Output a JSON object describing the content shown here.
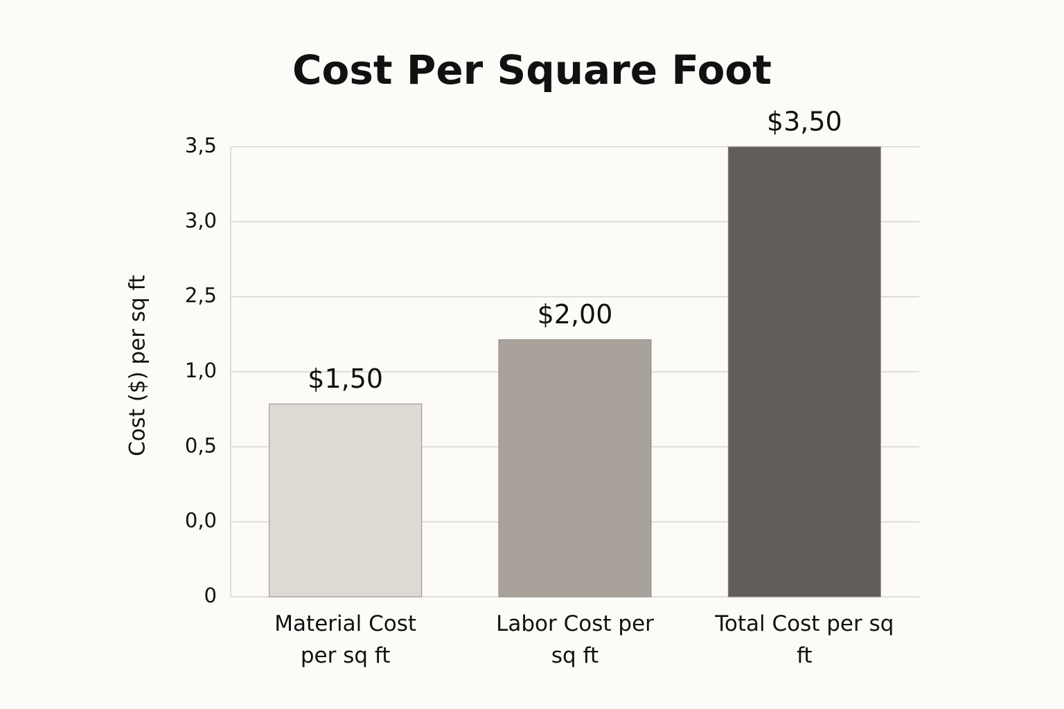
{
  "chart_data": {
    "type": "bar",
    "title": "Cost Per Square Foot",
    "y_label": "Cost ($) per sq ft",
    "categories": [
      "Material Cost per sq ft",
      "Labor Cost per sq ft",
      "Total Cost per sq ft"
    ],
    "values": [
      1.5,
      2,
      3.5
    ],
    "value_labels": [
      "$1,50",
      "$2,00",
      "$3,50"
    ],
    "colors": [
      "#e0dad5",
      "#a8a29b",
      "#625d58"
    ],
    "ylim": [
      0,
      3.5
    ],
    "yticks": [
      0,
      {
        "value": 0,
        "label": "0,0"
      },
      {
        "value": 0.5,
        "label": "0,5"
      },
      {
        "value": 1,
        "label": "1,0"
      },
      {
        "value": 2.5,
        "label": "2,5"
      },
      {
        "value": 3,
        "label": "3,0"
      },
      {
        "value": 3.5,
        "label": "3,5"
      }
    ],
    "grid": true
  }
}
